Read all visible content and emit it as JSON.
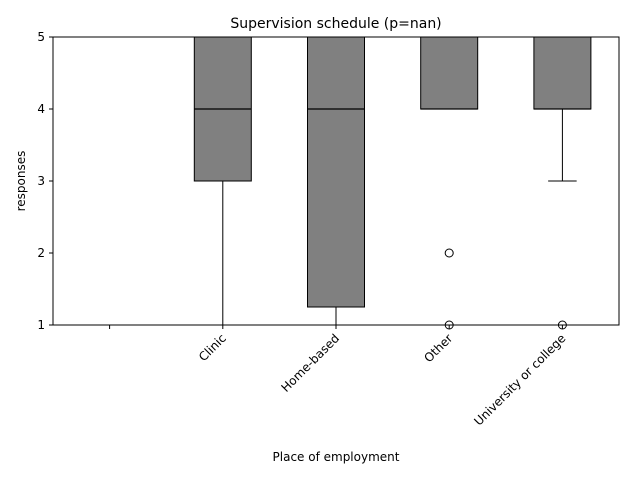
{
  "chart_data": {
    "type": "box",
    "title": "Supervision schedule (p=nan)",
    "xlabel": "Place of employment",
    "ylabel": "responses",
    "ylim": [
      1,
      5
    ],
    "yticks": [
      "1",
      "2",
      "3",
      "4",
      "5"
    ],
    "categories": [
      "",
      "Clinic",
      "Home-based",
      "Other",
      "University or college"
    ],
    "boxes": [
      null,
      {
        "q1": 3,
        "median": 4,
        "q3": 5,
        "whisker_low": 1,
        "whisker_high": 5,
        "fliers": []
      },
      {
        "q1": 1.25,
        "median": 4,
        "q3": 5,
        "whisker_low": 1,
        "whisker_high": 5,
        "fliers": []
      },
      {
        "q1": 4,
        "median": 4,
        "q3": 5,
        "whisker_low": 4,
        "whisker_high": 5,
        "fliers": [
          2,
          1
        ]
      },
      {
        "q1": 4,
        "median": 4,
        "q3": 5,
        "whisker_low": 3,
        "whisker_high": 5,
        "fliers": [
          1
        ]
      }
    ],
    "box_color": "#808080",
    "line_color": "#000000",
    "grid": false,
    "legend": "none"
  }
}
